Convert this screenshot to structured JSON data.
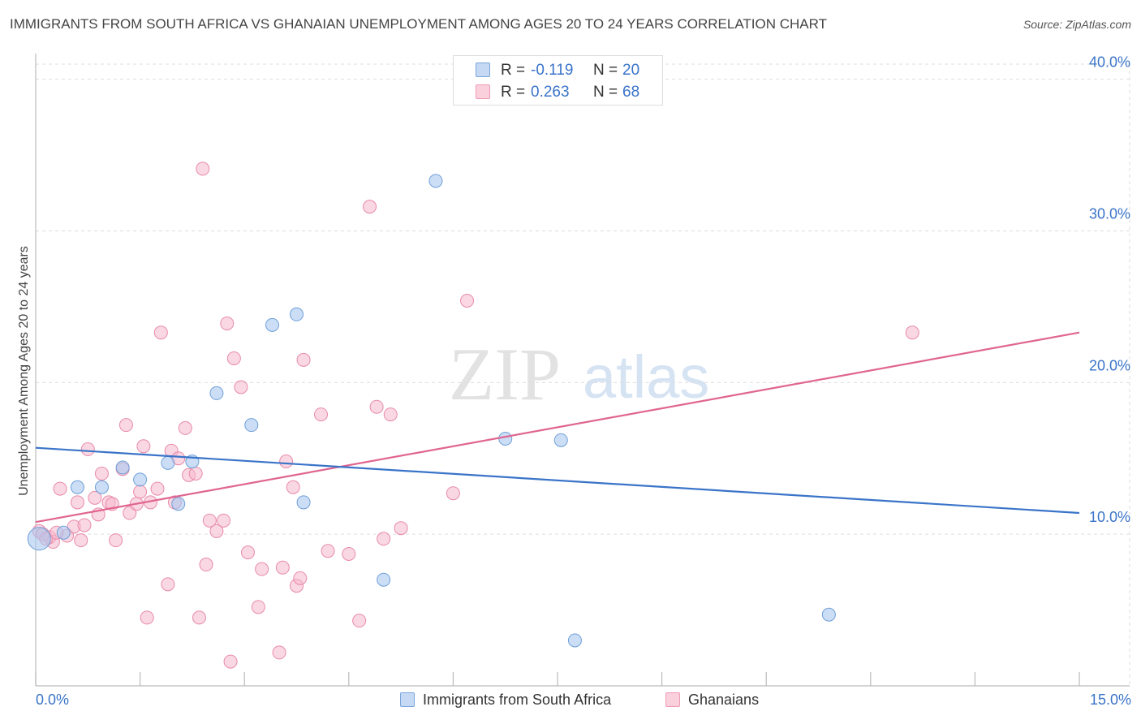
{
  "header": {
    "title": "IMMIGRANTS FROM SOUTH AFRICA VS GHANAIAN UNEMPLOYMENT AMONG AGES 20 TO 24 YEARS CORRELATION CHART",
    "source": "Source: ZipAtlas.com"
  },
  "watermark": {
    "zip": "ZIP",
    "atlas": "atlas"
  },
  "legend": {
    "blue": {
      "r_label": "R =",
      "r_value": "-0.119",
      "n_label": "N =",
      "n_value": "20"
    },
    "pink": {
      "r_label": "R =",
      "r_value": "0.263",
      "n_label": "N =",
      "n_value": "68"
    }
  },
  "colors": {
    "blue_fill": "#a9c8f0",
    "blue_stroke": "#6f9fd8",
    "blue_line": "#3a74c9",
    "pink_fill": "#f6b8cc",
    "pink_stroke": "#e88aa8",
    "pink_line": "#e06590",
    "axis_label": "#3a74c9",
    "grid": "#dddddd"
  },
  "chart_data": {
    "type": "scatter",
    "title": "IMMIGRANTS FROM SOUTH AFRICA VS GHANAIAN UNEMPLOYMENT AMONG AGES 20 TO 24 YEARS CORRELATION CHART",
    "xlabel": "",
    "ylabel": "Unemployment Among Ages 20 to 24 years",
    "xlim": [
      0,
      15
    ],
    "ylim": [
      0,
      41
    ],
    "x_tick_labels": [
      "0.0%",
      "15.0%"
    ],
    "y_ticks": [
      10,
      20,
      30,
      40
    ],
    "y_tick_labels": [
      "10.0%",
      "20.0%",
      "30.0%",
      "40.0%"
    ],
    "legend_position": "top-center",
    "series": [
      {
        "name": "Immigrants from South Africa",
        "color": "#a9c8f0",
        "points": [
          [
            0.05,
            9.7
          ],
          [
            0.4,
            10.1
          ],
          [
            0.6,
            13.1
          ],
          [
            0.95,
            13.1
          ],
          [
            1.25,
            14.4
          ],
          [
            1.5,
            13.6
          ],
          [
            1.9,
            14.7
          ],
          [
            2.05,
            12.0
          ],
          [
            2.25,
            14.8
          ],
          [
            2.6,
            19.3
          ],
          [
            3.1,
            17.2
          ],
          [
            3.4,
            23.8
          ],
          [
            3.75,
            24.5
          ],
          [
            3.85,
            12.1
          ],
          [
            5.0,
            7.0
          ],
          [
            5.75,
            33.3
          ],
          [
            6.75,
            16.3
          ],
          [
            7.55,
            16.2
          ],
          [
            7.75,
            3.0
          ],
          [
            11.4,
            4.7
          ]
        ],
        "trend": {
          "x": [
            0,
            15
          ],
          "y": [
            15.7,
            11.4
          ]
        }
      },
      {
        "name": "Ghanaians",
        "color": "#f6b8cc",
        "points": [
          [
            0.05,
            10.2
          ],
          [
            0.1,
            10.0
          ],
          [
            0.2,
            9.8
          ],
          [
            0.25,
            9.5
          ],
          [
            0.35,
            13.0
          ],
          [
            0.45,
            9.9
          ],
          [
            0.55,
            10.5
          ],
          [
            0.6,
            12.1
          ],
          [
            0.65,
            9.6
          ],
          [
            0.7,
            10.6
          ],
          [
            0.75,
            15.6
          ],
          [
            0.85,
            12.4
          ],
          [
            0.9,
            11.3
          ],
          [
            0.95,
            14.0
          ],
          [
            1.05,
            12.1
          ],
          [
            1.1,
            12.0
          ],
          [
            1.15,
            9.6
          ],
          [
            1.25,
            14.3
          ],
          [
            1.3,
            17.2
          ],
          [
            1.35,
            11.4
          ],
          [
            1.45,
            12.0
          ],
          [
            1.5,
            12.8
          ],
          [
            1.55,
            15.8
          ],
          [
            1.6,
            4.5
          ],
          [
            1.65,
            12.1
          ],
          [
            1.75,
            13.0
          ],
          [
            1.8,
            23.3
          ],
          [
            1.9,
            6.7
          ],
          [
            1.95,
            15.5
          ],
          [
            2.0,
            12.1
          ],
          [
            2.05,
            15.0
          ],
          [
            2.15,
            17.0
          ],
          [
            2.2,
            13.9
          ],
          [
            2.3,
            14.0
          ],
          [
            2.35,
            4.5
          ],
          [
            2.4,
            34.1
          ],
          [
            2.45,
            8.0
          ],
          [
            2.5,
            10.9
          ],
          [
            2.6,
            10.2
          ],
          [
            2.7,
            10.9
          ],
          [
            2.75,
            23.9
          ],
          [
            2.8,
            1.6
          ],
          [
            2.85,
            21.6
          ],
          [
            2.95,
            19.7
          ],
          [
            3.05,
            8.8
          ],
          [
            3.2,
            5.2
          ],
          [
            3.25,
            7.7
          ],
          [
            3.5,
            2.2
          ],
          [
            3.55,
            7.8
          ],
          [
            3.6,
            14.8
          ],
          [
            3.7,
            13.1
          ],
          [
            3.75,
            6.6
          ],
          [
            3.8,
            7.1
          ],
          [
            3.85,
            21.5
          ],
          [
            4.1,
            17.9
          ],
          [
            4.2,
            8.9
          ],
          [
            4.5,
            8.7
          ],
          [
            4.65,
            4.3
          ],
          [
            4.8,
            31.6
          ],
          [
            4.9,
            18.4
          ],
          [
            5.0,
            9.7
          ],
          [
            5.1,
            17.9
          ],
          [
            5.25,
            10.4
          ],
          [
            6.0,
            12.7
          ],
          [
            6.2,
            25.4
          ],
          [
            12.6,
            23.3
          ],
          [
            0.15,
            9.7
          ],
          [
            0.3,
            10.1
          ]
        ],
        "trend": {
          "x": [
            0,
            15
          ],
          "y": [
            10.8,
            23.3
          ]
        }
      }
    ]
  },
  "bottom_legend": {
    "blue_label": "Immigrants from South Africa",
    "pink_label": "Ghanaians"
  }
}
